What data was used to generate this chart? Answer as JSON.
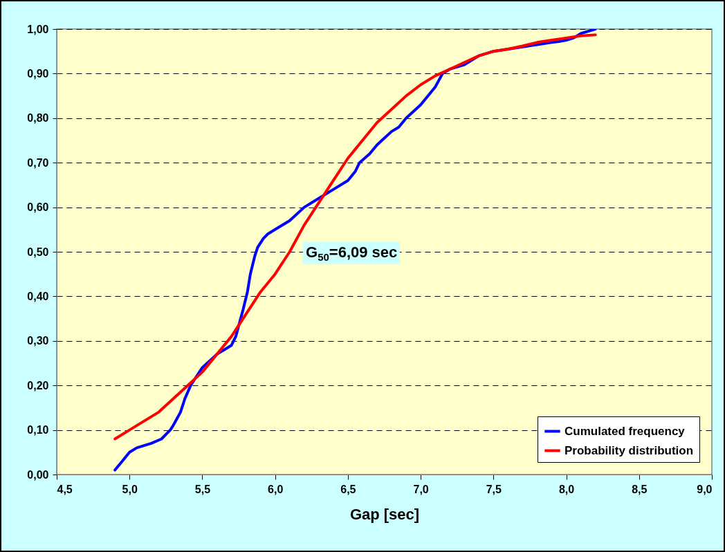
{
  "chart_data": {
    "type": "line",
    "xlabel": "Gap [sec]",
    "annotations": [
      "G$_{50}$=6,09 sec"
    ],
    "series": [
      {
        "name": "Cumulated frequency",
        "color": "#0000ff",
        "x": [
          4.9,
          4.95,
          5.0,
          5.05,
          5.15,
          5.22,
          5.28,
          5.3,
          5.35,
          5.38,
          5.42,
          5.5,
          5.6,
          5.65,
          5.7,
          5.73,
          5.78,
          5.81,
          5.83,
          5.86,
          5.88,
          5.92,
          5.95,
          6.0,
          6.1,
          6.2,
          6.3,
          6.4,
          6.5,
          6.55,
          6.58,
          6.65,
          6.7,
          6.75,
          6.8,
          6.85,
          6.9,
          7.0,
          7.1,
          7.15,
          7.2,
          7.3,
          7.4,
          7.5,
          7.6,
          7.7,
          7.8,
          7.9,
          7.95,
          8.0,
          8.05,
          8.1,
          8.2
        ],
        "values": [
          0.01,
          0.03,
          0.05,
          0.06,
          0.07,
          0.08,
          0.1,
          0.11,
          0.14,
          0.17,
          0.2,
          0.24,
          0.27,
          0.28,
          0.29,
          0.31,
          0.37,
          0.41,
          0.45,
          0.49,
          0.51,
          0.53,
          0.54,
          0.55,
          0.57,
          0.6,
          0.62,
          0.64,
          0.66,
          0.68,
          0.7,
          0.72,
          0.74,
          0.755,
          0.77,
          0.78,
          0.8,
          0.83,
          0.87,
          0.9,
          0.91,
          0.92,
          0.94,
          0.95,
          0.955,
          0.96,
          0.965,
          0.97,
          0.972,
          0.975,
          0.98,
          0.99,
          1.0
        ]
      },
      {
        "name": "Probability distribution",
        "color": "#ff0000",
        "x": [
          4.9,
          5.0,
          5.05,
          5.2,
          5.3,
          5.4,
          5.5,
          5.6,
          5.7,
          5.8,
          5.9,
          6.0,
          6.1,
          6.2,
          6.3,
          6.4,
          6.5,
          6.6,
          6.7,
          6.8,
          6.9,
          7.0,
          7.1,
          7.2,
          7.3,
          7.4,
          7.5,
          7.6,
          7.7,
          7.8,
          7.9,
          8.0,
          8.1,
          8.2
        ],
        "values": [
          0.08,
          0.1,
          0.11,
          0.14,
          0.17,
          0.2,
          0.23,
          0.27,
          0.31,
          0.36,
          0.41,
          0.45,
          0.5,
          0.56,
          0.61,
          0.66,
          0.71,
          0.75,
          0.79,
          0.82,
          0.85,
          0.875,
          0.895,
          0.91,
          0.925,
          0.94,
          0.95,
          0.955,
          0.962,
          0.97,
          0.975,
          0.98,
          0.985,
          0.987
        ]
      }
    ],
    "xlim": [
      4.5,
      9.0
    ],
    "xticks": [
      {
        "value": 4.5,
        "label": "4,5"
      },
      {
        "value": 5.0,
        "label": "5,0"
      },
      {
        "value": 5.5,
        "label": "5,5"
      },
      {
        "value": 6.0,
        "label": "6,0"
      },
      {
        "value": 6.5,
        "label": "6,5"
      },
      {
        "value": 7.0,
        "label": "7,0"
      },
      {
        "value": 7.5,
        "label": "7,5"
      },
      {
        "value": 8.0,
        "label": "8,0"
      },
      {
        "value": 8.5,
        "label": "8,5"
      },
      {
        "value": 9.0,
        "label": "9,0"
      }
    ],
    "ylim": [
      0,
      1
    ],
    "yticks": [
      {
        "value": 0,
        "label": "0,00"
      },
      {
        "value": 0.1,
        "label": "0,10"
      },
      {
        "value": 0.2,
        "label": "0,20"
      },
      {
        "value": 0.3,
        "label": "0,30"
      },
      {
        "value": 0.4,
        "label": "0,40"
      },
      {
        "value": 0.5,
        "label": "0,50"
      },
      {
        "value": 0.6,
        "label": "0,60"
      },
      {
        "value": 0.7,
        "label": "0,70"
      },
      {
        "value": 0.8,
        "label": "0,80"
      },
      {
        "value": 0.9,
        "label": "0,90"
      },
      {
        "value": 1.0,
        "label": "1,00"
      }
    ],
    "grid": "y",
    "legend": "bottom right",
    "line_style": "solid"
  }
}
